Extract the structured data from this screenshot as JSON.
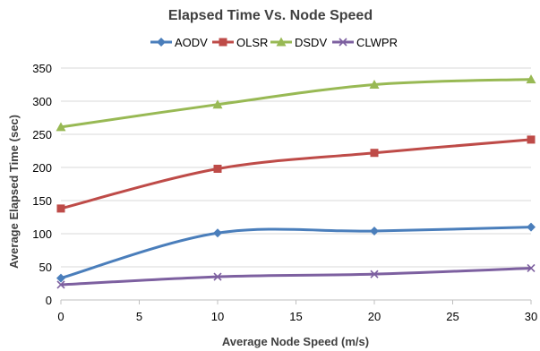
{
  "chart_data": {
    "type": "line",
    "title": "Elapsed Time Vs. Node Speed",
    "xlabel": "Average Node Speed (m/s)",
    "ylabel": "Average Elapsed Time (sec)",
    "xlim": [
      0,
      30
    ],
    "ylim": [
      0,
      350
    ],
    "x_ticks": [
      0,
      5,
      10,
      15,
      20,
      25,
      30
    ],
    "y_ticks": [
      0,
      50,
      100,
      150,
      200,
      250,
      300,
      350
    ],
    "grid": true,
    "legend_position": "top",
    "smoothed": true,
    "x": [
      0,
      10,
      20,
      30
    ],
    "series": [
      {
        "name": "AODV",
        "values": [
          33,
          101,
          104,
          110
        ],
        "color": "#4a7ebb",
        "marker": "diamond"
      },
      {
        "name": "OLSR",
        "values": [
          138,
          198,
          222,
          242
        ],
        "color": "#be4b48",
        "marker": "square"
      },
      {
        "name": "DSDV",
        "values": [
          261,
          295,
          325,
          333
        ],
        "color": "#98b954",
        "marker": "triangle"
      },
      {
        "name": "CLWPR",
        "values": [
          23,
          35,
          39,
          48
        ],
        "color": "#7d60a0",
        "marker": "x"
      }
    ]
  }
}
